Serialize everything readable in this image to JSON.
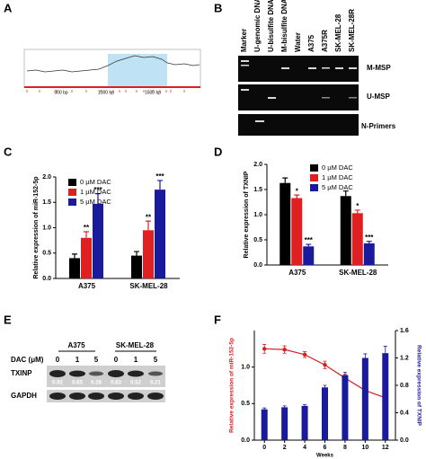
{
  "panels": {
    "letters": [
      "A",
      "B",
      "C",
      "D",
      "E",
      "F"
    ]
  },
  "cpg_plot": {
    "x_labels": [
      "500 bp",
      "1000 bp",
      "1500 bp"
    ]
  },
  "gel": {
    "lanes": [
      "Marker",
      "U-genomic DNA",
      "U-bisulfite DNA",
      "M-bisulfite DNA",
      "Water",
      "A375",
      "A375R",
      "SK-MEL-28",
      "SK-MEL-28R"
    ],
    "rows": [
      "M-MSP",
      "U-MSP",
      "N-Primers"
    ]
  },
  "western_blot": {
    "cell_lines": [
      "A375",
      "SK-MEL-28"
    ],
    "dose_label": "DAC (μM)",
    "doses": [
      0,
      1,
      5,
      0,
      1,
      5
    ],
    "proteins": [
      "TXINP",
      "GAPDH"
    ],
    "ratios": [
      0.92,
      0.65,
      0.28,
      0.83,
      0.52,
      0.21
    ]
  },
  "chart_data": [
    {
      "type": "bar",
      "y_label": "Relative expression of miR-152-5p",
      "categories": [
        "A375",
        "SK-MEL-28"
      ],
      "series": [
        {
          "name": "0 µM DAC",
          "color": "#000000",
          "values": [
            0.4,
            0.45
          ],
          "errors": [
            0.08,
            0.08
          ]
        },
        {
          "name": "1 µM DAC",
          "color": "#e02020",
          "values": [
            0.8,
            0.95
          ],
          "errors": [
            0.12,
            0.18
          ],
          "significance": [
            "**",
            "**"
          ]
        },
        {
          "name": "5 µM DAC",
          "color": "#1a1a9c",
          "values": [
            1.47,
            1.75
          ],
          "errors": [
            0.2,
            0.18
          ],
          "significance": [
            "***",
            "***"
          ]
        }
      ],
      "ylim": [
        0,
        2
      ],
      "yticks": [
        {
          "value": 0,
          "label": "0.0"
        },
        {
          "value": 0.5,
          "label": "0.5"
        },
        {
          "value": 1,
          "label": "1.0"
        },
        {
          "value": 1.5,
          "label": "1.5"
        },
        {
          "value": 2,
          "label": "2.0"
        }
      ]
    },
    {
      "type": "bar",
      "y_label": "Relative expression of TXNIP",
      "categories": [
        "A375",
        "SK-MEL-28"
      ],
      "series": [
        {
          "name": "0 µM DAC",
          "color": "#000000",
          "values": [
            1.63,
            1.37
          ],
          "errors": [
            0.1,
            0.1
          ]
        },
        {
          "name": "1 µM DAC",
          "color": "#e02020",
          "values": [
            1.33,
            1.03
          ],
          "errors": [
            0.06,
            0.06
          ],
          "significance": [
            "*",
            "*"
          ]
        },
        {
          "name": "5 µM DAC",
          "color": "#1a1a9c",
          "values": [
            0.37,
            0.43
          ],
          "errors": [
            0.04,
            0.04
          ],
          "significance": [
            "***",
            "***"
          ]
        }
      ],
      "ylim": [
        0,
        2
      ],
      "yticks": [
        {
          "value": 0,
          "label": "0.0"
        },
        {
          "value": 0.5,
          "label": "0.5"
        },
        {
          "value": 1,
          "label": "1.0"
        },
        {
          "value": 1.5,
          "label": "1.5"
        },
        {
          "value": 2,
          "label": "2.0"
        }
      ]
    },
    {
      "type": "combo",
      "x_label": "Weeks",
      "x": [
        0,
        2,
        4,
        6,
        8,
        10,
        12
      ],
      "xlim": [
        -1,
        13
      ],
      "xticks": [
        0,
        2,
        4,
        6,
        8,
        10,
        12
      ],
      "series": [
        {
          "name": "Relative expression of miR-152-5p",
          "color": "#d42020",
          "mark": "line",
          "values": [
            1.25,
            1.24,
            1.17,
            1.03,
            0.85,
            0.68,
            0.58
          ],
          "errors": [
            0.06,
            0.05,
            0.04,
            0.05,
            0.05,
            0.05,
            0.05
          ]
        },
        {
          "name": "Relative expression of TXNIP",
          "color": "#1a1a9c",
          "mark": "bar",
          "axis": "y2",
          "values": [
            0.45,
            0.48,
            0.5,
            0.77,
            0.95,
            1.2,
            1.27
          ],
          "errors": [
            0.02,
            0.02,
            0.02,
            0.03,
            0.04,
            0.06,
            0.1
          ]
        }
      ],
      "ylim": [
        0,
        1.5
      ],
      "yticks": [
        {
          "value": 0,
          "label": "0.0"
        },
        {
          "value": 0.5,
          "label": "0.5"
        },
        {
          "value": 1,
          "label": "1.0"
        }
      ],
      "y2lim": [
        0,
        1.6
      ],
      "y2ticks": [
        {
          "value": 0,
          "label": "0.0"
        },
        {
          "value": 0.4,
          "label": "0.4"
        },
        {
          "value": 0.8,
          "label": "0.8"
        },
        {
          "value": 1.2,
          "label": "1.2"
        },
        {
          "value": 1.6,
          "label": "1.6"
        }
      ]
    }
  ]
}
